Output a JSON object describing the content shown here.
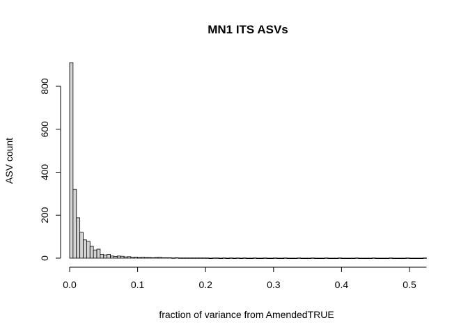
{
  "chart_data": {
    "type": "bar",
    "title": "MN1 ITS ASVs",
    "xlabel": "fraction of variance from AmendedTRUE",
    "ylabel": "ASV count",
    "xlim": [
      0,
      0.5
    ],
    "ylim": [
      0,
      800
    ],
    "x_ticks": [
      "0.0",
      "0.1",
      "0.2",
      "0.3",
      "0.4",
      "0.5"
    ],
    "y_ticks": [
      "0",
      "200",
      "400",
      "600",
      "800"
    ],
    "grid": false,
    "bin_width": 0.005,
    "bin_start": 0,
    "bar_fill": "#d3d3d3",
    "bar_stroke": "#000000",
    "values": [
      910,
      320,
      188,
      120,
      85,
      78,
      55,
      38,
      42,
      18,
      15,
      18,
      10,
      8,
      10,
      9,
      6,
      7,
      4,
      5,
      3,
      4,
      3,
      3,
      2,
      3,
      4,
      2,
      2,
      2,
      1,
      2,
      1,
      1,
      1,
      1,
      1,
      1,
      1,
      1,
      1,
      0,
      1,
      1,
      0,
      1,
      0,
      1,
      0,
      1,
      0,
      1,
      0,
      0,
      1,
      0,
      0,
      1,
      0,
      0,
      1,
      0,
      0,
      1,
      0,
      0,
      0,
      1,
      0,
      0,
      0,
      1,
      0,
      0,
      0,
      1,
      0,
      0,
      0,
      1,
      0,
      0,
      0,
      0,
      1,
      0,
      0,
      0,
      0,
      1,
      0,
      0,
      0,
      0,
      1,
      0,
      0,
      0,
      0,
      1,
      0,
      0,
      0,
      0,
      1
    ]
  }
}
